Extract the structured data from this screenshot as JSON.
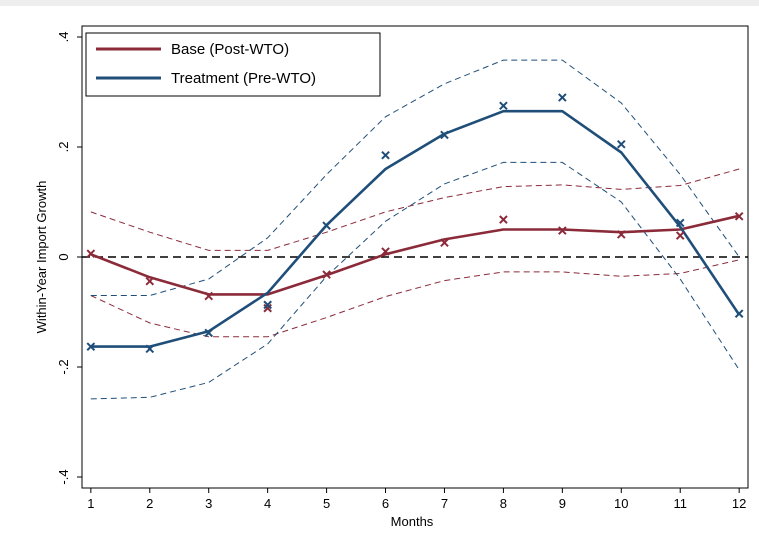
{
  "chart_data": {
    "type": "line",
    "xlabel": "Months",
    "ylabel": "Within-Year Import Growth",
    "x": [
      1,
      2,
      3,
      4,
      5,
      6,
      7,
      8,
      9,
      10,
      11,
      12
    ],
    "xlim": [
      0.85,
      12.15
    ],
    "ylim": [
      -0.42,
      0.42
    ],
    "xticks": [
      {
        "value": 1,
        "label": "1"
      },
      {
        "value": 2,
        "label": "2"
      },
      {
        "value": 3,
        "label": "3"
      },
      {
        "value": 4,
        "label": "4"
      },
      {
        "value": 5,
        "label": "5"
      },
      {
        "value": 6,
        "label": "6"
      },
      {
        "value": 7,
        "label": "7"
      },
      {
        "value": 8,
        "label": "8"
      },
      {
        "value": 9,
        "label": "9"
      },
      {
        "value": 10,
        "label": "10"
      },
      {
        "value": 11,
        "label": "11"
      },
      {
        "value": 12,
        "label": "12"
      }
    ],
    "yticks": [
      {
        "value": -0.4,
        "label": "-.4"
      },
      {
        "value": -0.2,
        "label": "-.2"
      },
      {
        "value": 0,
        "label": "0"
      },
      {
        "value": 0.2,
        "label": ".2"
      },
      {
        "value": 0.4,
        "label": ".4"
      }
    ],
    "reference_line": {
      "y": 0,
      "style": "dashed",
      "color": "#000000"
    },
    "legend": {
      "position": "top-left",
      "border": true
    },
    "grid": false,
    "series": [
      {
        "name": "Base (Post-WTO)",
        "color": "#8B2B3A",
        "fitted": [
          0.005,
          -0.037,
          -0.068,
          -0.068,
          -0.033,
          0.005,
          0.032,
          0.05,
          0.05,
          0.045,
          0.05,
          0.075
        ],
        "points": [
          0.006,
          -0.044,
          -0.071,
          -0.093,
          -0.032,
          0.01,
          0.026,
          0.068,
          0.048,
          0.041,
          0.039,
          0.074
        ],
        "ci_upper": [
          0.082,
          0.045,
          0.012,
          0.012,
          0.045,
          0.082,
          0.108,
          0.128,
          0.131,
          0.123,
          0.13,
          0.16
        ],
        "ci_lower": [
          -0.07,
          -0.12,
          -0.145,
          -0.145,
          -0.11,
          -0.072,
          -0.043,
          -0.027,
          -0.027,
          -0.035,
          -0.03,
          -0.005
        ]
      },
      {
        "name": "Treatment (Pre-WTO)",
        "color": "#1F4E79",
        "fitted": [
          -0.163,
          -0.163,
          -0.135,
          -0.065,
          0.058,
          0.16,
          0.224,
          0.265,
          0.265,
          0.19,
          0.055,
          -0.105
        ],
        "points": [
          -0.163,
          -0.167,
          -0.138,
          -0.087,
          0.057,
          0.185,
          0.222,
          0.275,
          0.29,
          0.205,
          0.062,
          -0.103
        ],
        "ci_upper": [
          -0.07,
          -0.07,
          -0.04,
          0.035,
          0.15,
          0.255,
          0.315,
          0.358,
          0.358,
          0.28,
          0.15,
          0.0
        ],
        "ci_lower": [
          -0.258,
          -0.255,
          -0.228,
          -0.158,
          -0.035,
          0.065,
          0.133,
          0.172,
          0.172,
          0.1,
          -0.04,
          -0.205
        ]
      }
    ]
  }
}
